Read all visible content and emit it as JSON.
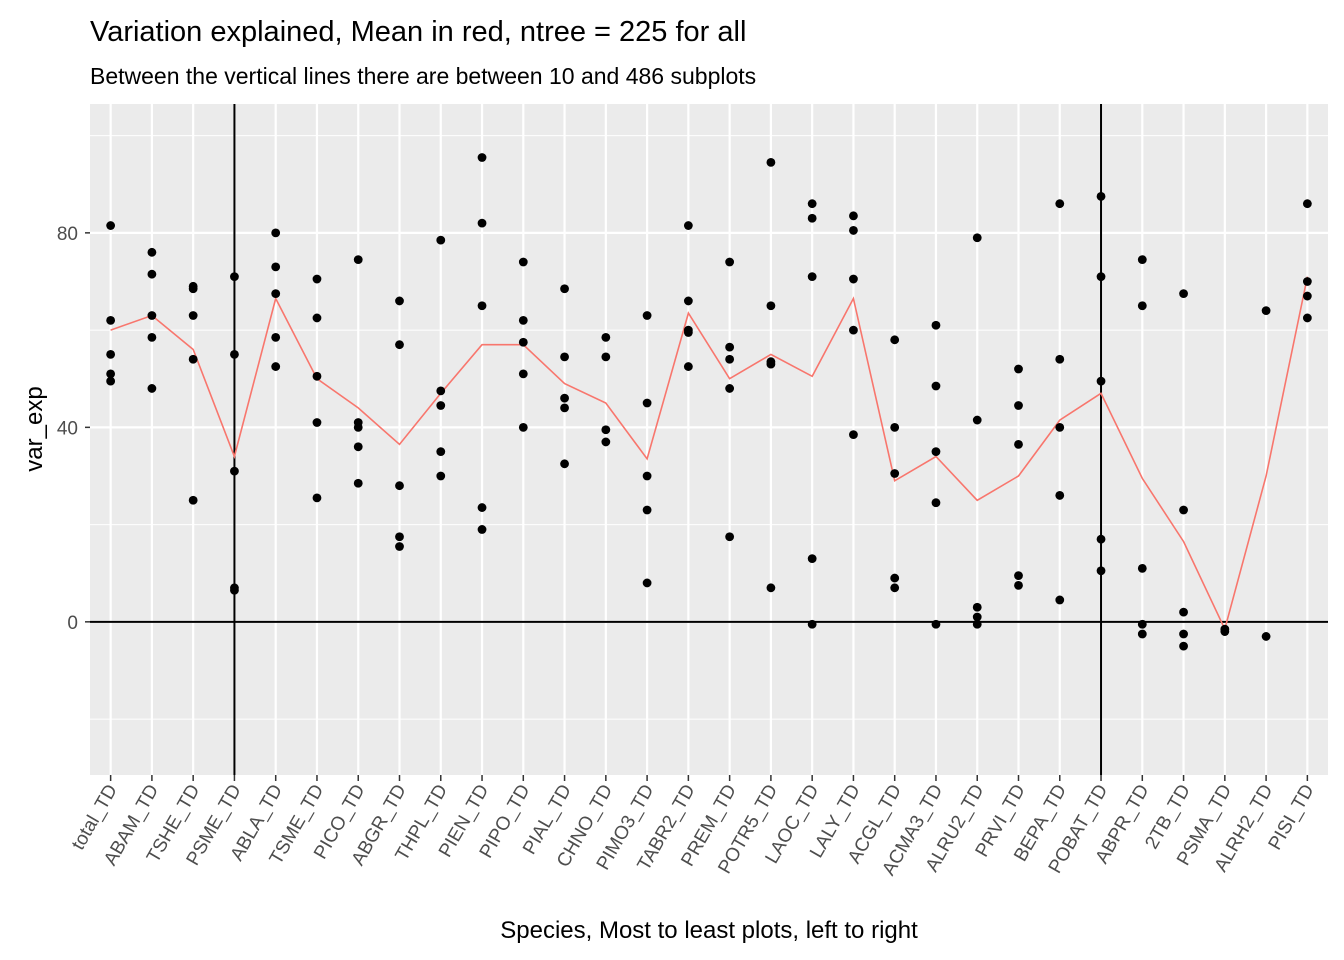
{
  "chart_data": {
    "type": "scatter",
    "title": "Variation explained, Mean in red, ntree = 225 for all",
    "subtitle": "Between the vertical lines there are between 10 and 486 subplots",
    "xlabel": "Species, Most to least plots, left to right",
    "ylabel": "var_exp",
    "ylim": [
      -31.5,
      106.5
    ],
    "y_ticks": [
      0,
      40,
      80
    ],
    "grid": true,
    "legend": "none",
    "colors": {
      "points": "#000000",
      "mean_line": "#F8766D",
      "panel": "#EBEBEB",
      "grid": "#FFFFFF",
      "reference_lines": "#000000"
    },
    "categories": [
      "total_TD",
      "ABAM_TD",
      "TSHE_TD",
      "PSME_TD",
      "ABLA_TD",
      "TSME_TD",
      "PICO_TD",
      "ABGR_TD",
      "THPL_TD",
      "PIEN_TD",
      "PIPO_TD",
      "PIAL_TD",
      "CHNO_TD",
      "PIMO3_TD",
      "TABR2_TD",
      "PREM_TD",
      "POTR5_TD",
      "LAOC_TD",
      "LALY_TD",
      "ACGL_TD",
      "ACMA3_TD",
      "ALRU2_TD",
      "PRVI_TD",
      "BEPA_TD",
      "POBAT_TD",
      "ABPR_TD",
      "2TB_TD",
      "PSMA_TD",
      "ALRH2_TD",
      "PISI_TD"
    ],
    "points": [
      [
        81.5,
        62,
        55,
        51,
        49.5
      ],
      [
        76,
        71.5,
        63,
        58.5,
        48
      ],
      [
        69,
        68.5,
        63,
        54,
        25
      ],
      [
        71,
        55,
        31,
        7,
        6.5
      ],
      [
        80,
        73,
        67.5,
        58.5,
        52.5
      ],
      [
        70.5,
        62.5,
        50.5,
        41,
        25.5
      ],
      [
        74.5,
        41,
        40,
        36,
        28.5
      ],
      [
        66,
        57,
        28,
        17.5,
        15.5
      ],
      [
        78.5,
        47.5,
        44.5,
        35,
        30
      ],
      [
        95.5,
        82,
        65,
        23.5,
        19
      ],
      [
        74,
        62,
        57.5,
        51,
        40
      ],
      [
        68.5,
        54.5,
        46,
        44,
        32.5
      ],
      [
        58.5,
        54.5,
        39.5,
        37
      ],
      [
        63,
        45,
        30,
        23,
        8
      ],
      [
        81.5,
        66,
        60,
        59.5,
        52.5
      ],
      [
        74,
        56.5,
        54,
        48,
        17.5
      ],
      [
        94.5,
        65,
        53.5,
        53,
        7
      ],
      [
        86,
        83,
        71,
        13,
        -0.5
      ],
      [
        83.5,
        80.5,
        70.5,
        60,
        38.5
      ],
      [
        58,
        40,
        30.5,
        9,
        7
      ],
      [
        61,
        48.5,
        35,
        24.5,
        -0.5
      ],
      [
        79,
        41.5,
        3,
        1,
        -0.5
      ],
      [
        52,
        44.5,
        36.5,
        9.5,
        7.5
      ],
      [
        86,
        54,
        40,
        26,
        4.5
      ],
      [
        87.5,
        71,
        49.5,
        17,
        10.5
      ],
      [
        74.5,
        65,
        11,
        -0.5,
        -2.5
      ],
      [
        67.5,
        23,
        2,
        -2.5,
        -5
      ],
      [
        -1.5,
        -2
      ],
      [
        64,
        -3
      ],
      [
        86,
        70,
        67,
        62.5
      ]
    ],
    "series": [
      {
        "values": [
          60,
          63,
          56,
          34,
          66.5,
          50,
          44,
          36.5,
          47,
          57,
          57,
          49,
          45,
          33.5,
          63.5,
          50,
          55,
          50.5,
          66.5,
          29,
          34,
          25,
          30,
          41.5,
          47,
          29.5,
          16.5,
          -1.5,
          30,
          71
        ]
      }
    ],
    "vertical_lines_at": [
      "PSME_TD",
      "POBAT_TD"
    ],
    "horizontal_line_at": 0
  }
}
